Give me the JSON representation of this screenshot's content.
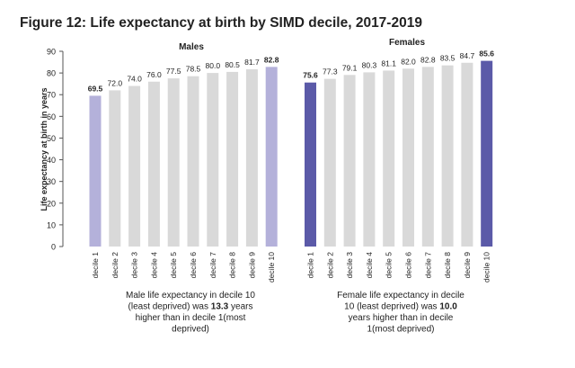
{
  "title": "Figure 12: Life expectancy at birth by SIMD decile, 2017-2019",
  "chart_data": [
    {
      "type": "bar",
      "title": "Males",
      "y_label": "Life expectancy at birth in years",
      "categories": [
        "decile 1",
        "decile 2",
        "decile 3",
        "decile 4",
        "decile 5",
        "decile 6",
        "decile 7",
        "decile 8",
        "decile 9",
        "decile 10"
      ],
      "values": [
        69.5,
        72.0,
        74.0,
        76.0,
        77.5,
        78.5,
        80.0,
        80.5,
        81.7,
        82.8
      ],
      "value_labels": [
        "69.5",
        "72.0",
        "74.0",
        "76.0",
        "77.5",
        "78.5",
        "80.0",
        "80.5",
        "81.7",
        "82.8"
      ],
      "colors": [
        "#b4b1da",
        "#d9d9d9",
        "#d9d9d9",
        "#d9d9d9",
        "#d9d9d9",
        "#d9d9d9",
        "#d9d9d9",
        "#d9d9d9",
        "#d9d9d9",
        "#b4b1da"
      ],
      "ylim": [
        0,
        90
      ],
      "yticks": [
        0,
        10,
        20,
        30,
        40,
        50,
        60,
        70,
        80,
        90
      ],
      "annotation": [
        [
          "Male life expectancy in decile 10"
        ],
        [
          "(least deprived) was ",
          "13.3",
          " years"
        ],
        [
          "higher than in decile 1(most"
        ],
        [
          "deprived)"
        ]
      ]
    },
    {
      "type": "bar",
      "title": "Females",
      "categories": [
        "decile 1",
        "decile 2",
        "decile 3",
        "decile 4",
        "decile 5",
        "decile 6",
        "decile 7",
        "decile 8",
        "decile 9",
        "decile 10"
      ],
      "values": [
        75.6,
        77.3,
        79.1,
        80.3,
        81.1,
        82.0,
        82.8,
        83.5,
        84.7,
        85.6
      ],
      "value_labels": [
        "75.6",
        "77.3",
        "79.1",
        "80.3",
        "81.1",
        "82.0",
        "82.8",
        "83.5",
        "84.7",
        "85.6"
      ],
      "colors": [
        "#5b5aa8",
        "#d9d9d9",
        "#d9d9d9",
        "#d9d9d9",
        "#d9d9d9",
        "#d9d9d9",
        "#d9d9d9",
        "#d9d9d9",
        "#d9d9d9",
        "#5b5aa8"
      ],
      "ylim": [
        0,
        90
      ],
      "annotation": [
        [
          "Female life expectancy in decile"
        ],
        [
          "10 (least deprived) was ",
          "10.0"
        ],
        [
          "years higher than in decile"
        ],
        [
          "1(most deprived)"
        ]
      ]
    }
  ]
}
